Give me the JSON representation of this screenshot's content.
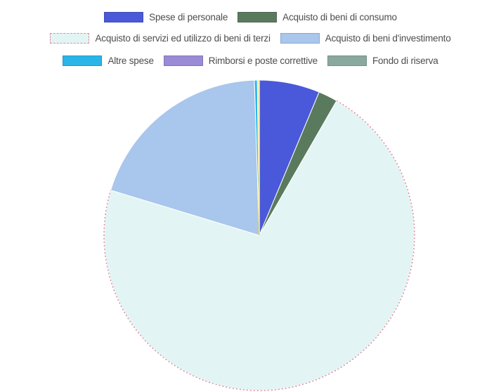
{
  "chart_data": {
    "type": "pie",
    "series": [
      {
        "name": "Spese di personale",
        "value": 6.3,
        "color": "#4a59d9"
      },
      {
        "name": "Acquisto di beni di consumo",
        "value": 2.0,
        "color": "#5a7a5e"
      },
      {
        "name": "Acquisto di servizi ed utilizzo di beni di terzi",
        "value": 71.4,
        "color": "#e2f5f4",
        "border": "#e58ca2"
      },
      {
        "name": "Acquisto di beni d'investimento",
        "value": 19.8,
        "color": "#a9c6ec"
      },
      {
        "name": "Altre spese",
        "value": 0.3,
        "color": "#2ab5e8"
      },
      {
        "name": "Rimborsi e poste correttive",
        "value": 0.1,
        "color": "#9b8ad6"
      },
      {
        "name": "Fondo di riserva",
        "value": 0.1,
        "color": "#8aa99e"
      }
    ],
    "legend": "top",
    "slice_order": "clockwise from top",
    "separator_color": "#f4e04a"
  }
}
